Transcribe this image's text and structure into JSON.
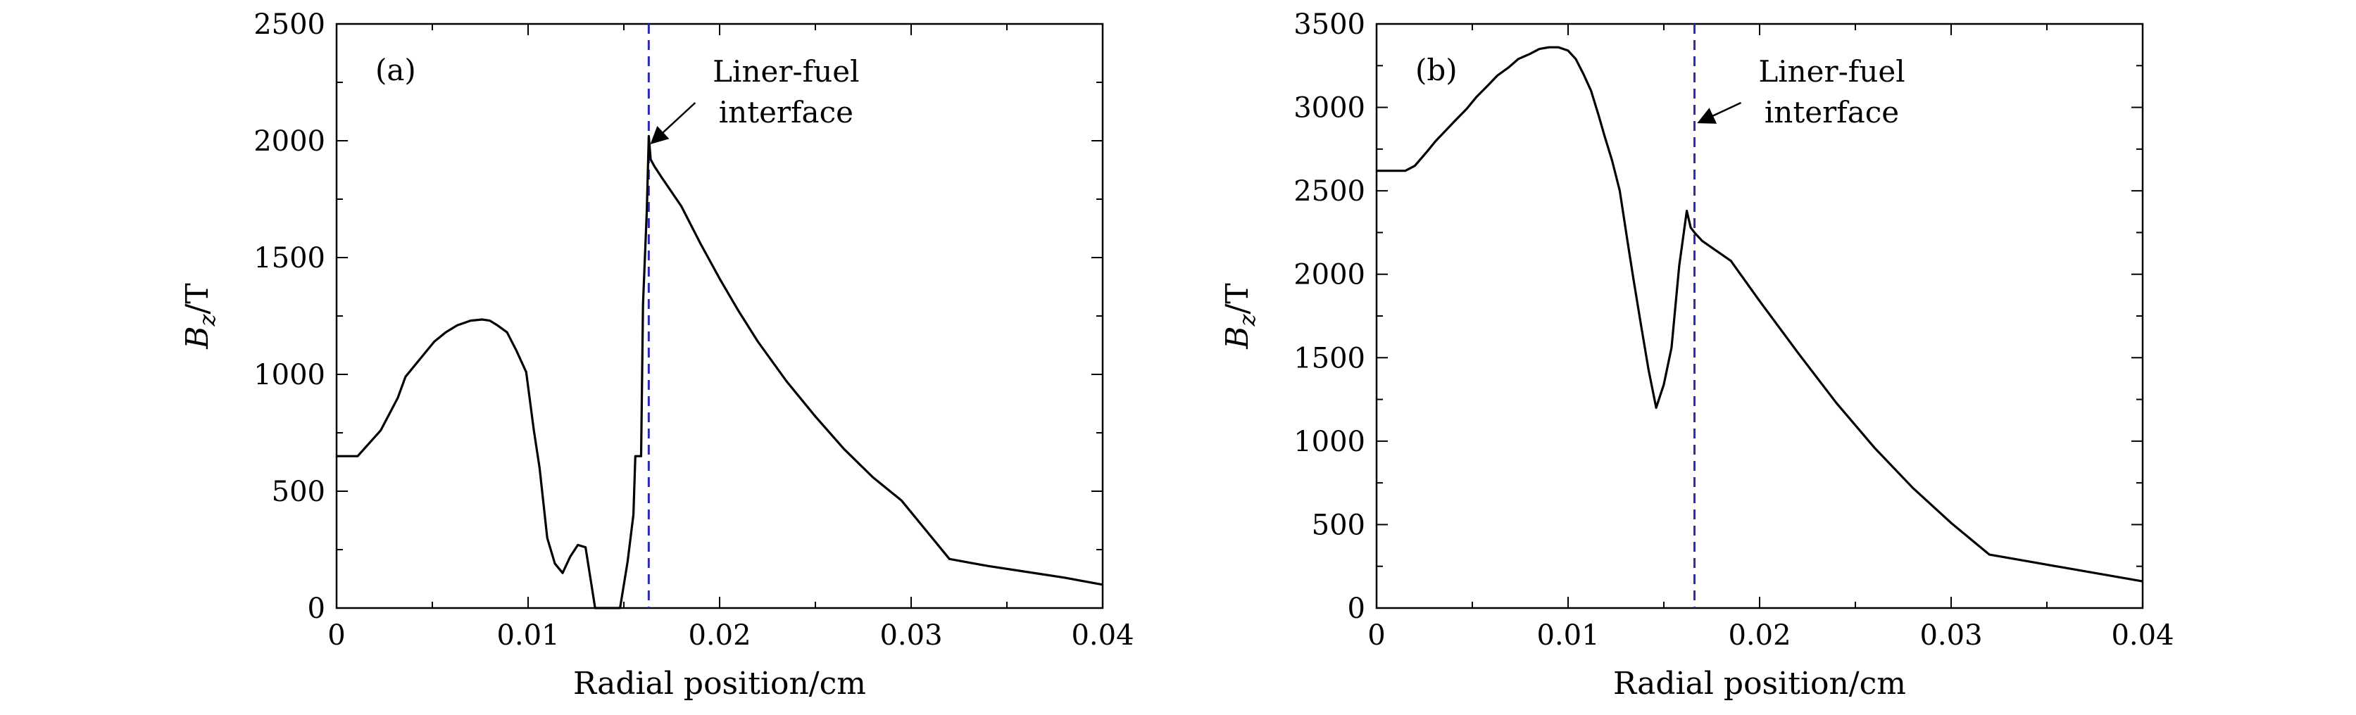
{
  "chart_data": [
    {
      "type": "line",
      "panel_label": "(a)",
      "xlabel": "Radial position/cm",
      "ylabel_main": "B",
      "ylabel_sub": "z",
      "ylabel_unit": "/T",
      "xlim": [
        0,
        0.04
      ],
      "ylim": [
        0,
        2500
      ],
      "x_ticks": [
        0,
        0.01,
        0.02,
        0.03,
        0.04
      ],
      "x_tick_labels": [
        "0",
        "0.01",
        "0.02",
        "0.03",
        "0.04"
      ],
      "y_ticks": [
        0,
        500,
        1000,
        1500,
        2000,
        2500
      ],
      "y_tick_labels": [
        "0",
        "500",
        "1000",
        "1500",
        "2000",
        "2500"
      ],
      "grid": false,
      "line_color": "#000000",
      "interface": {
        "x": 0.0163,
        "color": "#2b2bb5",
        "label_line1": "Liner-fuel",
        "label_line2": "interface"
      },
      "series": [
        {
          "x": [
            0,
            0.0011,
            0.0023,
            0.0032,
            0.0036,
            0.004,
            0.0046,
            0.0051,
            0.0057,
            0.0063,
            0.007,
            0.0076,
            0.008,
            0.0084,
            0.0089,
            0.0094,
            0.0099,
            0.0103,
            0.0106,
            0.011,
            0.0114,
            0.0118,
            0.0122,
            0.0126,
            0.013,
            0.0135,
            0.014,
            0.0145,
            0.0148,
            0.0152,
            0.0155,
            0.0156,
            0.0159,
            0.016,
            0.0162,
            0.0163,
            0.0164,
            0.0166,
            0.017,
            0.018,
            0.019,
            0.02,
            0.021,
            0.022,
            0.0235,
            0.025,
            0.0265,
            0.028,
            0.0295,
            0.032,
            0.034,
            0.036,
            0.038,
            0.04
          ],
          "y": [
            650,
            650,
            760,
            900,
            990,
            1030,
            1090,
            1140,
            1180,
            1210,
            1230,
            1235,
            1230,
            1210,
            1180,
            1100,
            1010,
            760,
            600,
            300,
            190,
            150,
            220,
            270,
            260,
            0,
            0,
            0,
            0,
            200,
            400,
            650,
            650,
            1300,
            1700,
            2020,
            1920,
            1890,
            1840,
            1720,
            1560,
            1410,
            1270,
            1140,
            970,
            820,
            680,
            560,
            460,
            210,
            180,
            155,
            130,
            100
          ]
        }
      ]
    },
    {
      "type": "line",
      "panel_label": "(b)",
      "xlabel": "Radial position/cm",
      "ylabel_main": "B",
      "ylabel_sub": "z",
      "ylabel_unit": "/T",
      "xlim": [
        0,
        0.04
      ],
      "ylim": [
        0,
        3500
      ],
      "x_ticks": [
        0,
        0.01,
        0.02,
        0.03,
        0.04
      ],
      "x_tick_labels": [
        "0",
        "0.01",
        "0.02",
        "0.03",
        "0.04"
      ],
      "y_ticks": [
        0,
        500,
        1000,
        1500,
        2000,
        2500,
        3000,
        3500
      ],
      "y_tick_labels": [
        "0",
        "500",
        "1000",
        "1500",
        "2000",
        "2500",
        "3000",
        "3500"
      ],
      "grid": false,
      "line_color": "#000000",
      "interface": {
        "x": 0.0166,
        "color": "#2b2bb5",
        "label_line1": "Liner-fuel",
        "label_line2": "interface"
      },
      "series": [
        {
          "x": [
            0,
            0.0015,
            0.002,
            0.0026,
            0.0031,
            0.0036,
            0.0041,
            0.0047,
            0.0052,
            0.0058,
            0.0063,
            0.0069,
            0.0074,
            0.008,
            0.0085,
            0.009,
            0.0095,
            0.01,
            0.0104,
            0.0108,
            0.0112,
            0.0116,
            0.0119,
            0.0123,
            0.0127,
            0.0131,
            0.0134,
            0.0138,
            0.0142,
            0.0146,
            0.015,
            0.0154,
            0.0158,
            0.0162,
            0.0164,
            0.0166,
            0.017,
            0.0185,
            0.02,
            0.022,
            0.024,
            0.026,
            0.028,
            0.03,
            0.032,
            0.034,
            0.036,
            0.038,
            0.04
          ],
          "y": [
            2620,
            2620,
            2650,
            2730,
            2800,
            2860,
            2920,
            2990,
            3060,
            3130,
            3190,
            3240,
            3290,
            3320,
            3350,
            3360,
            3360,
            3340,
            3290,
            3200,
            3100,
            2950,
            2830,
            2680,
            2500,
            2200,
            1980,
            1700,
            1430,
            1200,
            1340,
            1560,
            2050,
            2380,
            2280,
            2250,
            2200,
            2080,
            1840,
            1530,
            1230,
            960,
            720,
            510,
            320,
            280,
            240,
            200,
            160
          ]
        }
      ]
    }
  ]
}
